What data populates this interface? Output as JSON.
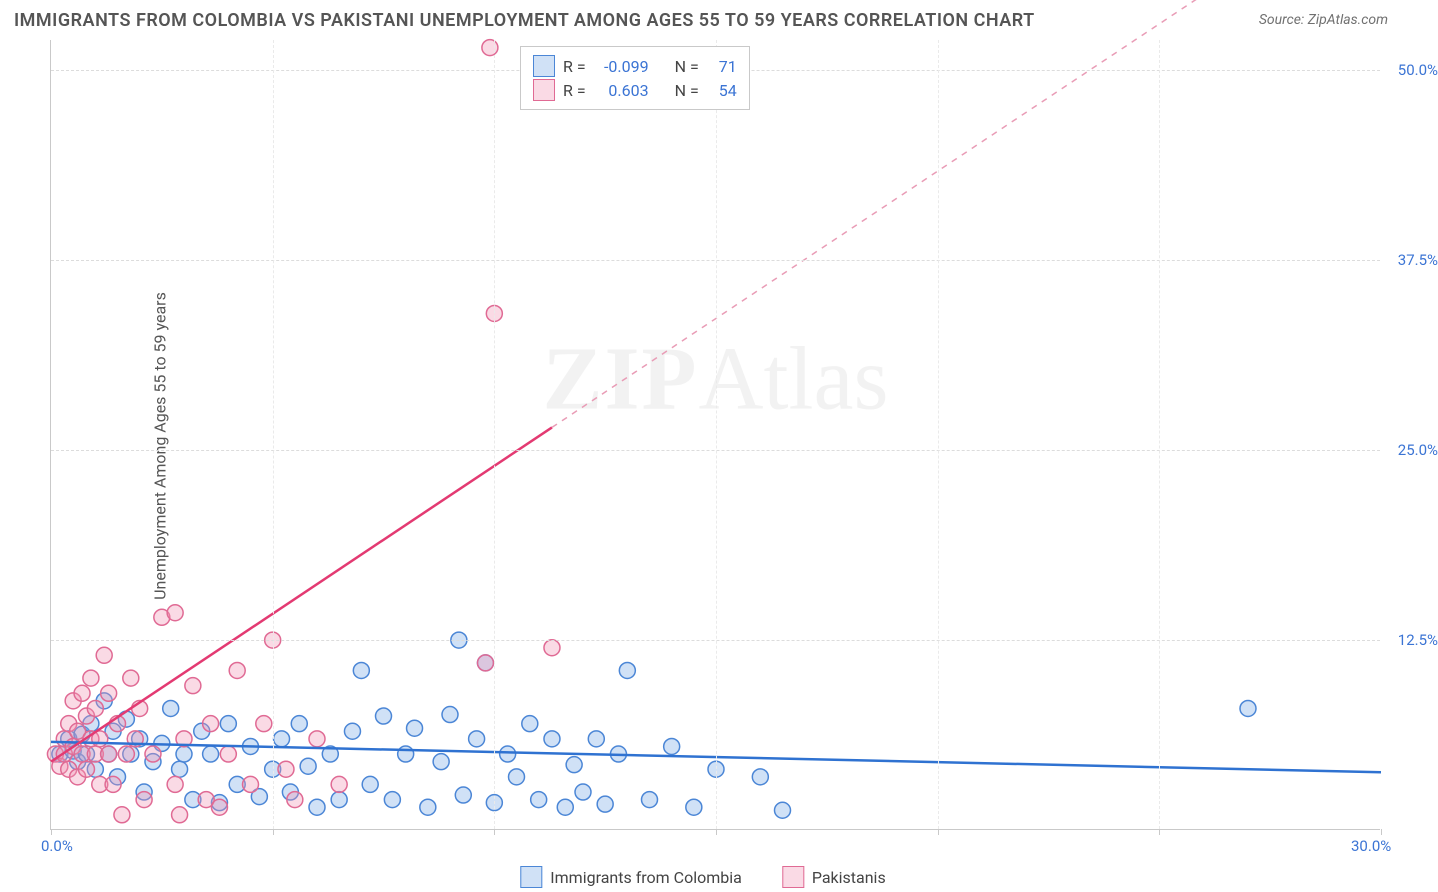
{
  "title": "IMMIGRANTS FROM COLOMBIA VS PAKISTANI UNEMPLOYMENT AMONG AGES 55 TO 59 YEARS CORRELATION CHART",
  "source": "Source: ZipAtlas.com",
  "ylabel": "Unemployment Among Ages 55 to 59 years",
  "watermark_a": "ZIP",
  "watermark_b": "Atlas",
  "chart": {
    "type": "scatter",
    "x_range": [
      0,
      30
    ],
    "y_range": [
      0,
      52
    ],
    "x_ticks": [
      0,
      5,
      10,
      15,
      20,
      25,
      30
    ],
    "x_tick_labels": {
      "0": "0.0%",
      "30": "30.0%"
    },
    "y_ticks": [
      12.5,
      25.0,
      37.5,
      50.0
    ],
    "y_tick_labels": [
      "12.5%",
      "25.0%",
      "37.5%",
      "50.0%"
    ],
    "grid_color": "#dcdcdc",
    "axis_color": "#c9c9c9",
    "background_color": "#ffffff",
    "marker_radius": 8,
    "marker_border_width": 1.5,
    "series": [
      {
        "name": "Immigrants from Colombia",
        "fill": "rgba(120,170,230,0.35)",
        "stroke": "#4b86d6",
        "R": "-0.099",
        "N": "71",
        "trend": {
          "x1": 0,
          "y1": 5.8,
          "x2": 30,
          "y2": 3.8,
          "color": "#2f72d1",
          "width": 2.5,
          "dash": "none"
        },
        "points": [
          [
            0.2,
            5.0
          ],
          [
            0.4,
            6.0
          ],
          [
            0.5,
            5.2
          ],
          [
            0.6,
            4.5
          ],
          [
            0.7,
            6.3
          ],
          [
            0.8,
            5.0
          ],
          [
            0.9,
            7.0
          ],
          [
            1.0,
            4.0
          ],
          [
            1.2,
            8.5
          ],
          [
            1.3,
            5.0
          ],
          [
            1.4,
            6.5
          ],
          [
            1.5,
            3.5
          ],
          [
            1.7,
            7.3
          ],
          [
            1.8,
            5.0
          ],
          [
            2.0,
            6.0
          ],
          [
            2.1,
            2.5
          ],
          [
            2.3,
            4.5
          ],
          [
            2.5,
            5.7
          ],
          [
            2.7,
            8.0
          ],
          [
            2.9,
            4.0
          ],
          [
            3.0,
            5.0
          ],
          [
            3.2,
            2.0
          ],
          [
            3.4,
            6.5
          ],
          [
            3.6,
            5.0
          ],
          [
            3.8,
            1.8
          ],
          [
            4.0,
            7.0
          ],
          [
            4.2,
            3.0
          ],
          [
            4.5,
            5.5
          ],
          [
            4.7,
            2.2
          ],
          [
            5.0,
            4.0
          ],
          [
            5.2,
            6.0
          ],
          [
            5.4,
            2.5
          ],
          [
            5.6,
            7.0
          ],
          [
            5.8,
            4.2
          ],
          [
            6.0,
            1.5
          ],
          [
            6.3,
            5.0
          ],
          [
            6.5,
            2.0
          ],
          [
            6.8,
            6.5
          ],
          [
            7.0,
            10.5
          ],
          [
            7.2,
            3.0
          ],
          [
            7.5,
            7.5
          ],
          [
            7.7,
            2.0
          ],
          [
            8.0,
            5.0
          ],
          [
            8.2,
            6.7
          ],
          [
            8.5,
            1.5
          ],
          [
            8.8,
            4.5
          ],
          [
            9.0,
            7.6
          ],
          [
            9.2,
            12.5
          ],
          [
            9.3,
            2.3
          ],
          [
            9.6,
            6.0
          ],
          [
            9.8,
            11.0
          ],
          [
            10.0,
            1.8
          ],
          [
            10.3,
            5.0
          ],
          [
            10.5,
            3.5
          ],
          [
            10.8,
            7.0
          ],
          [
            11.0,
            2.0
          ],
          [
            11.3,
            6.0
          ],
          [
            11.6,
            1.5
          ],
          [
            11.8,
            4.3
          ],
          [
            12.0,
            2.5
          ],
          [
            12.3,
            6.0
          ],
          [
            12.5,
            1.7
          ],
          [
            12.8,
            5.0
          ],
          [
            13.0,
            10.5
          ],
          [
            13.5,
            2.0
          ],
          [
            14.0,
            5.5
          ],
          [
            14.5,
            1.5
          ],
          [
            15.0,
            4.0
          ],
          [
            16.0,
            3.5
          ],
          [
            16.5,
            1.3
          ],
          [
            27.0,
            8.0
          ]
        ]
      },
      {
        "name": "Pakistanis",
        "fill": "rgba(240,150,180,0.35)",
        "stroke": "#e06a94",
        "R": "0.603",
        "N": "54",
        "trend_solid": {
          "x1": 0,
          "y1": 4.5,
          "x2": 11.3,
          "y2": 26.5,
          "color": "#e33a72",
          "width": 2.5,
          "dash": "none"
        },
        "trend_dash": {
          "x1": 11.3,
          "y1": 26.5,
          "x2": 26.0,
          "y2": 55.0,
          "color": "#e99cb6",
          "width": 1.5,
          "dash": "6 6"
        },
        "points": [
          [
            0.1,
            5.0
          ],
          [
            0.2,
            4.2
          ],
          [
            0.3,
            6.0
          ],
          [
            0.3,
            5.0
          ],
          [
            0.4,
            7.0
          ],
          [
            0.4,
            4.0
          ],
          [
            0.5,
            8.5
          ],
          [
            0.5,
            5.5
          ],
          [
            0.6,
            3.5
          ],
          [
            0.6,
            6.5
          ],
          [
            0.7,
            9.0
          ],
          [
            0.7,
            5.0
          ],
          [
            0.8,
            4.0
          ],
          [
            0.8,
            7.5
          ],
          [
            0.9,
            6.0
          ],
          [
            0.9,
            10.0
          ],
          [
            1.0,
            5.0
          ],
          [
            1.0,
            8.0
          ],
          [
            1.1,
            3.0
          ],
          [
            1.1,
            6.0
          ],
          [
            1.2,
            11.5
          ],
          [
            1.3,
            5.0
          ],
          [
            1.3,
            9.0
          ],
          [
            1.4,
            3.0
          ],
          [
            1.5,
            7.0
          ],
          [
            1.6,
            1.0
          ],
          [
            1.7,
            5.0
          ],
          [
            1.8,
            10.0
          ],
          [
            1.9,
            6.0
          ],
          [
            2.0,
            8.0
          ],
          [
            2.1,
            2.0
          ],
          [
            2.3,
            5.0
          ],
          [
            2.5,
            14.0
          ],
          [
            2.8,
            14.3
          ],
          [
            2.8,
            3.0
          ],
          [
            2.9,
            1.0
          ],
          [
            3.0,
            6.0
          ],
          [
            3.2,
            9.5
          ],
          [
            3.5,
            2.0
          ],
          [
            3.6,
            7.0
          ],
          [
            3.8,
            1.5
          ],
          [
            4.0,
            5.0
          ],
          [
            4.2,
            10.5
          ],
          [
            4.5,
            3.0
          ],
          [
            4.8,
            7.0
          ],
          [
            5.0,
            12.5
          ],
          [
            5.3,
            4.0
          ],
          [
            5.5,
            2.0
          ],
          [
            6.0,
            6.0
          ],
          [
            6.5,
            3.0
          ],
          [
            9.8,
            11.0
          ],
          [
            9.9,
            51.5
          ],
          [
            10.0,
            34.0
          ],
          [
            11.3,
            12.0
          ]
        ]
      }
    ],
    "legend_top": {
      "r_label": "R =",
      "n_label": "N =",
      "text_color": "#444",
      "value_color": "#3b74d4"
    }
  }
}
